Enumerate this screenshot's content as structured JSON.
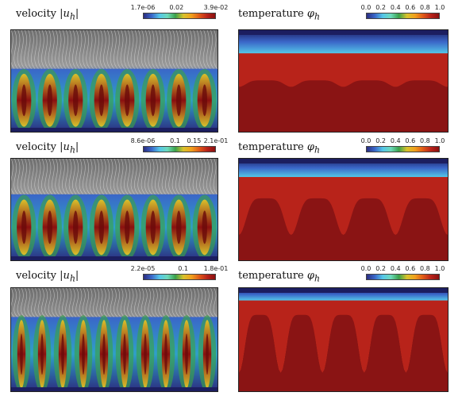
{
  "velocity_label": "velocity",
  "velocity_symbol": "|u",
  "velocity_sub": "h",
  "velocity_close": "|",
  "temperature_label": "temperature",
  "temperature_symbol": "φ",
  "temperature_sub": "h",
  "rows": [
    {
      "velocity_ticks": [
        "1.7e-06",
        "0.02",
        "3.9e-02"
      ],
      "temperature_ticks": [
        "0.0",
        "0.2",
        "0.4",
        "0.6",
        "0.8",
        "1.0"
      ],
      "cells": 8,
      "front_level": 0.38,
      "finger_depth": 0.08
    },
    {
      "velocity_ticks": [
        "8.6e-06",
        "0.1",
        "0.15",
        "2.1e-01"
      ],
      "temperature_ticks": [
        "0.0",
        "0.2",
        "0.4",
        "0.6",
        "0.8",
        "1.0"
      ],
      "cells": 8,
      "front_level": 0.3,
      "finger_depth": 0.45
    },
    {
      "velocity_ticks": [
        "2.2e-05",
        "0.1",
        "1.8e-01"
      ],
      "temperature_ticks": [
        "0.0",
        "0.2",
        "0.4",
        "0.6",
        "0.8",
        "1.0"
      ],
      "cells": 10,
      "front_level": 0.2,
      "finger_depth": 0.7
    }
  ],
  "colormap": [
    "#2b2d80",
    "#3a66c8",
    "#54c6e8",
    "#6cd9ba",
    "#3aa14a",
    "#d8c22c",
    "#f0a01c",
    "#e05a18",
    "#b8231a",
    "#8a1010"
  ]
}
